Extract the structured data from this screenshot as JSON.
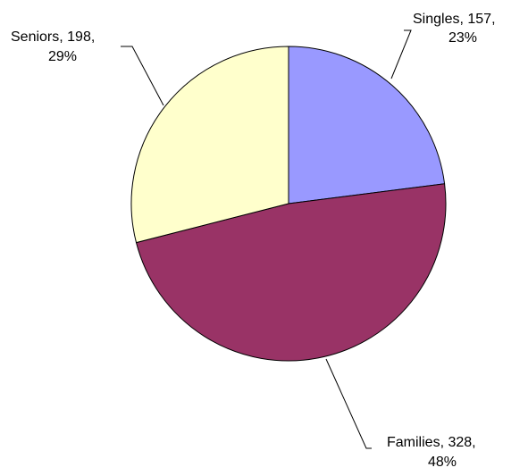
{
  "chart_data": {
    "type": "pie",
    "title": "",
    "slices": [
      {
        "name": "Singles",
        "value": 157,
        "percent": "23%",
        "color": "#9999ff",
        "label_line1": "Singles, 157,",
        "label_line2": "23%"
      },
      {
        "name": "Families",
        "value": 328,
        "percent": "48%",
        "color": "#993366",
        "label_line1": "Families, 328,",
        "label_line2": "48%"
      },
      {
        "name": "Seniors",
        "value": 198,
        "percent": "29%",
        "color": "#ffffcc",
        "label_line1": "Seniors, 198,",
        "label_line2": "29%"
      }
    ],
    "start_angle": "12 o'clock",
    "direction": "clockwise",
    "legend": "none"
  }
}
